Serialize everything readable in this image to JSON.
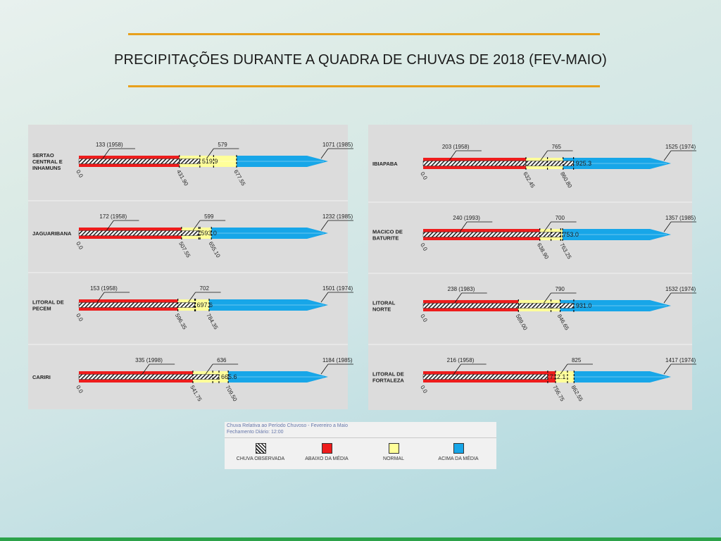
{
  "slide": {
    "title": "PRECIPITAÇÕES DURANTE A QUADRA DE CHUVAS DE 2018 (FEV-MAIO)"
  },
  "colors": {
    "below": "#ee1c1c",
    "normal": "#ffff99",
    "above": "#17a6e8",
    "rule": "#e8a01c",
    "footer": "#2ca24a"
  },
  "legend": {
    "header_line1": "Chuva Relativa ao Período Chuvoso - Fevereiro a Maio",
    "header_line2": "Fechamento Diário: 12:00",
    "items": [
      {
        "label": "CHUVA OBSERVADA",
        "swatch": "hatch"
      },
      {
        "label": "ABAIXO DA MÉDIA",
        "swatch": "below"
      },
      {
        "label": "NORMAL",
        "swatch": "normal"
      },
      {
        "label": "ACIMA DA MÉDIA",
        "swatch": "above"
      }
    ]
  },
  "chart_data": [
    {
      "type": "bar",
      "panel": "left",
      "regions": [
        {
          "name": "SERTÃO CENTRAL E INHAMUNS",
          "label_lines": [
            "SERTAO",
            "CENTRAL E",
            "INHAMUNS"
          ],
          "zero": "0.0",
          "min": 133,
          "min_label": "133 (1958)",
          "mean": 579,
          "mean_label": "579",
          "max": 1071,
          "max_label": "1071 (1985)",
          "lower": 431.9,
          "lower_label": "431.90",
          "upper": 677.55,
          "upper_label": "677.55",
          "observed": 519.9,
          "observed_label": "519.9"
        },
        {
          "name": "JAGUARIBANA",
          "label_lines": [
            "JAGUARIBANA"
          ],
          "zero": "0.0",
          "min": 172,
          "min_label": "172 (1958)",
          "mean": 599,
          "mean_label": "599",
          "max": 1232,
          "max_label": "1232 (1985)",
          "lower": 507.55,
          "lower_label": "507.55",
          "upper": 655.1,
          "upper_label": "655.10",
          "observed": 593.0,
          "observed_label": "593.0"
        },
        {
          "name": "LITORAL DE PECÉM",
          "label_lines": [
            "LITORAL DE",
            "PECEM"
          ],
          "zero": "0.0",
          "min": 153,
          "min_label": "153 (1958)",
          "mean": 702,
          "mean_label": "702",
          "max": 1501,
          "max_label": "1501 (1974)",
          "lower": 596.35,
          "lower_label": "596.35",
          "upper": 784.35,
          "upper_label": "784.35",
          "observed": 697.6,
          "observed_label": "697.6"
        },
        {
          "name": "CARIRI",
          "label_lines": [
            "CARIRI"
          ],
          "zero": "0.0",
          "min": 335,
          "min_label": "335 (1998)",
          "mean": 636,
          "mean_label": "636",
          "max": 1184,
          "max_label": "1184 (1985)",
          "lower": 541.75,
          "lower_label": "541.75",
          "upper": 709.5,
          "upper_label": "709.50",
          "observed": 665.6,
          "observed_label": "665.6"
        }
      ]
    },
    {
      "type": "bar",
      "panel": "right",
      "regions": [
        {
          "name": "IBIAPABA",
          "label_lines": [
            "IBIAPABA"
          ],
          "zero": "0.0",
          "min": 203,
          "min_label": "203 (1958)",
          "mean": 765,
          "mean_label": "765",
          "max": 1525,
          "max_label": "1525 (1974)",
          "lower": 632.45,
          "lower_label": "632.45",
          "upper": 860.8,
          "upper_label": "860.80",
          "observed": 925.3,
          "observed_label": "925.3"
        },
        {
          "name": "MACIÇO DE BATURITÉ",
          "label_lines": [
            "MACICO DE",
            "BATURITE"
          ],
          "zero": "0.0",
          "min": 240,
          "min_label": "240 (1993)",
          "mean": 700,
          "mean_label": "700",
          "max": 1357,
          "max_label": "1357 (1985)",
          "lower": 638.9,
          "lower_label": "638.90",
          "upper": 763.25,
          "upper_label": "763.25",
          "observed": 753.0,
          "observed_label": "753.0"
        },
        {
          "name": "LITORAL NORTE",
          "label_lines": [
            "LITORAL",
            "NORTE"
          ],
          "zero": "0.0",
          "min": 238,
          "min_label": "238 (1983)",
          "mean": 790,
          "mean_label": "790",
          "max": 1532,
          "max_label": "1532 (1974)",
          "lower": 589.0,
          "lower_label": "589.00",
          "upper": 846.65,
          "upper_label": "846.65",
          "observed": 931.0,
          "observed_label": "931.0"
        },
        {
          "name": "LITORAL DE FORTALEZA",
          "label_lines": [
            "LITORAL DE",
            "FORTALEZA"
          ],
          "zero": "0.0",
          "min": 216,
          "min_label": "216 (1958)",
          "mean": 825,
          "mean_label": "825",
          "max": 1417,
          "max_label": "1417 (1974)",
          "lower": 756.75,
          "lower_label": "756.75",
          "upper": 862.55,
          "upper_label": "862.55",
          "observed": 712.1,
          "observed_label": "712.1"
        }
      ]
    }
  ]
}
